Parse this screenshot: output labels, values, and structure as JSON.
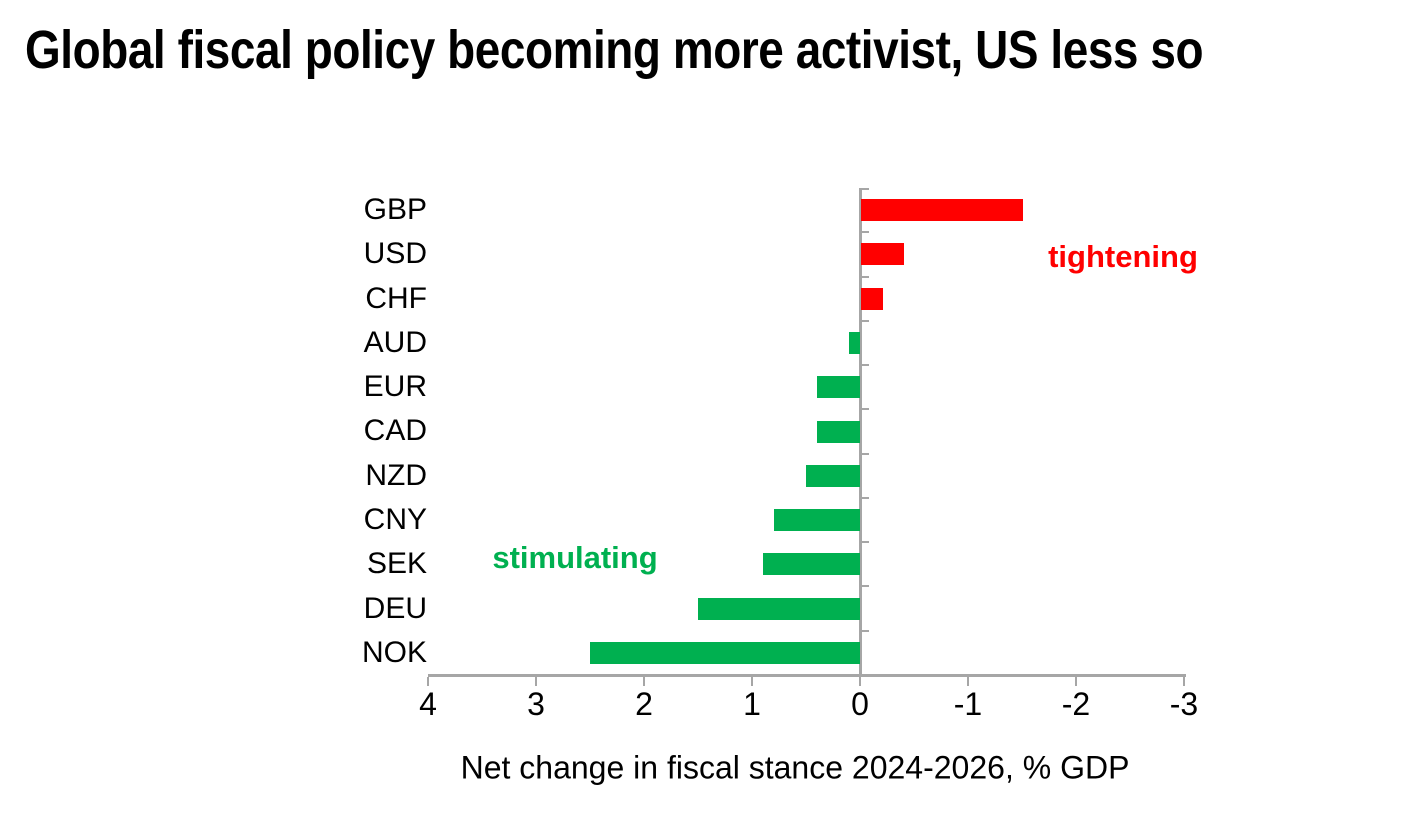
{
  "title": "Global fiscal policy becoming more activist, US less so",
  "chart_data": {
    "type": "bar",
    "orientation": "horizontal",
    "title": "Global fiscal policy becoming more activist, US less so",
    "xlabel": "Net change in fiscal stance 2024-2026, % GDP",
    "categories": [
      "GBP",
      "USD",
      "CHF",
      "AUD",
      "EUR",
      "CAD",
      "NZD",
      "CNY",
      "SEK",
      "DEU",
      "NOK"
    ],
    "values": [
      -1.5,
      -0.4,
      -0.2,
      0.1,
      0.4,
      0.4,
      0.5,
      0.8,
      0.9,
      1.5,
      2.5
    ],
    "x_ticks": [
      "4",
      "3",
      "2",
      "1",
      "0",
      "-1",
      "-2",
      "-3"
    ],
    "xlim": [
      4,
      -3
    ],
    "x_axis_reversed": true,
    "grid": false,
    "legend": "none",
    "annotations": [
      {
        "id": "tightening",
        "text": "tightening",
        "color": "#FF0000"
      },
      {
        "id": "stimulating",
        "text": "stimulating",
        "color": "#00B050"
      }
    ],
    "colors": {
      "positive_bar": "#00B050",
      "negative_bar": "#FF0000",
      "axis": "#A6A6A6",
      "text": "#000000"
    }
  }
}
